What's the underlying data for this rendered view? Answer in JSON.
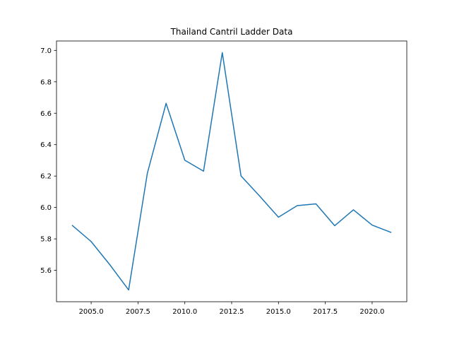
{
  "chart_data": {
    "type": "line",
    "title": "Thailand Cantril Ladder Data",
    "xlabel": "",
    "ylabel": "",
    "x_ticks": [
      "2005.0",
      "2007.5",
      "2010.0",
      "2012.5",
      "2015.0",
      "2017.5",
      "2020.0"
    ],
    "y_ticks": [
      "5.6",
      "5.8",
      "6.0",
      "6.2",
      "6.4",
      "6.6",
      "6.8",
      "7.0"
    ],
    "xlim": [
      2003.15,
      2021.85
    ],
    "ylim": [
      5.4,
      7.06
    ],
    "grid": false,
    "series": [
      {
        "color": "#1f77b4",
        "x": [
          2004,
          2005,
          2006,
          2007,
          2008,
          2009,
          2010,
          2011,
          2012,
          2013,
          2014,
          2015,
          2016,
          2017,
          2018,
          2019,
          2020,
          2021
        ],
        "values": [
          5.885,
          5.783,
          5.635,
          5.475,
          6.218,
          6.663,
          6.301,
          6.231,
          6.986,
          6.201,
          6.072,
          5.938,
          6.012,
          6.023,
          5.884,
          5.985,
          5.888,
          5.842
        ]
      }
    ]
  }
}
